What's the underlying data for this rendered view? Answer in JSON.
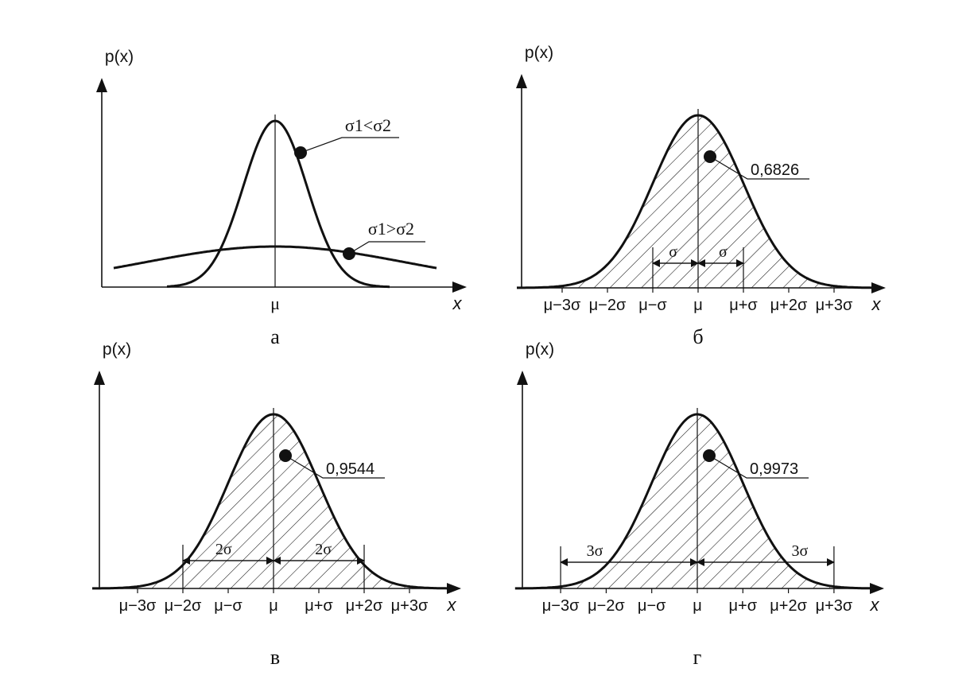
{
  "colors": {
    "ink": "#111111",
    "background": "#ffffff"
  },
  "chart_data": [
    {
      "panel": "a",
      "type": "line",
      "ylabel": "p(x)",
      "xlabel": "x",
      "tick_labels": [
        "μ"
      ],
      "series": [
        {
          "name": "narrow",
          "sigma_rel": 0.25,
          "annotation": "σ1<σ2"
        },
        {
          "name": "wide",
          "sigma_rel": 1.0,
          "annotation": "σ1>σ2"
        }
      ],
      "caption": "а"
    },
    {
      "panel": "b",
      "type": "area",
      "ylabel": "p(x)",
      "xlabel": "x",
      "tick_labels": [
        "μ−3σ",
        "μ−2σ",
        "μ−σ",
        "μ",
        "μ+σ",
        "μ+2σ",
        "μ+3σ"
      ],
      "interval_sigma": 1,
      "interval_label": "σ",
      "probability": "0,6826",
      "caption": "б"
    },
    {
      "panel": "c",
      "type": "area",
      "ylabel": "p(x)",
      "xlabel": "x",
      "tick_labels": [
        "μ−3σ",
        "μ−2σ",
        "μ−σ",
        "μ",
        "μ+σ",
        "μ+2σ",
        "μ+3σ"
      ],
      "interval_sigma": 2,
      "interval_label": "2σ",
      "probability": "0,9544",
      "caption": "в"
    },
    {
      "panel": "d",
      "type": "area",
      "ylabel": "p(x)",
      "xlabel": "x",
      "tick_labels": [
        "μ−3σ",
        "μ−2σ",
        "μ−σ",
        "μ",
        "μ+σ",
        "μ+2σ",
        "μ+3σ"
      ],
      "interval_sigma": 3,
      "interval_label": "3σ",
      "probability": "0,9973",
      "caption": "г"
    }
  ]
}
